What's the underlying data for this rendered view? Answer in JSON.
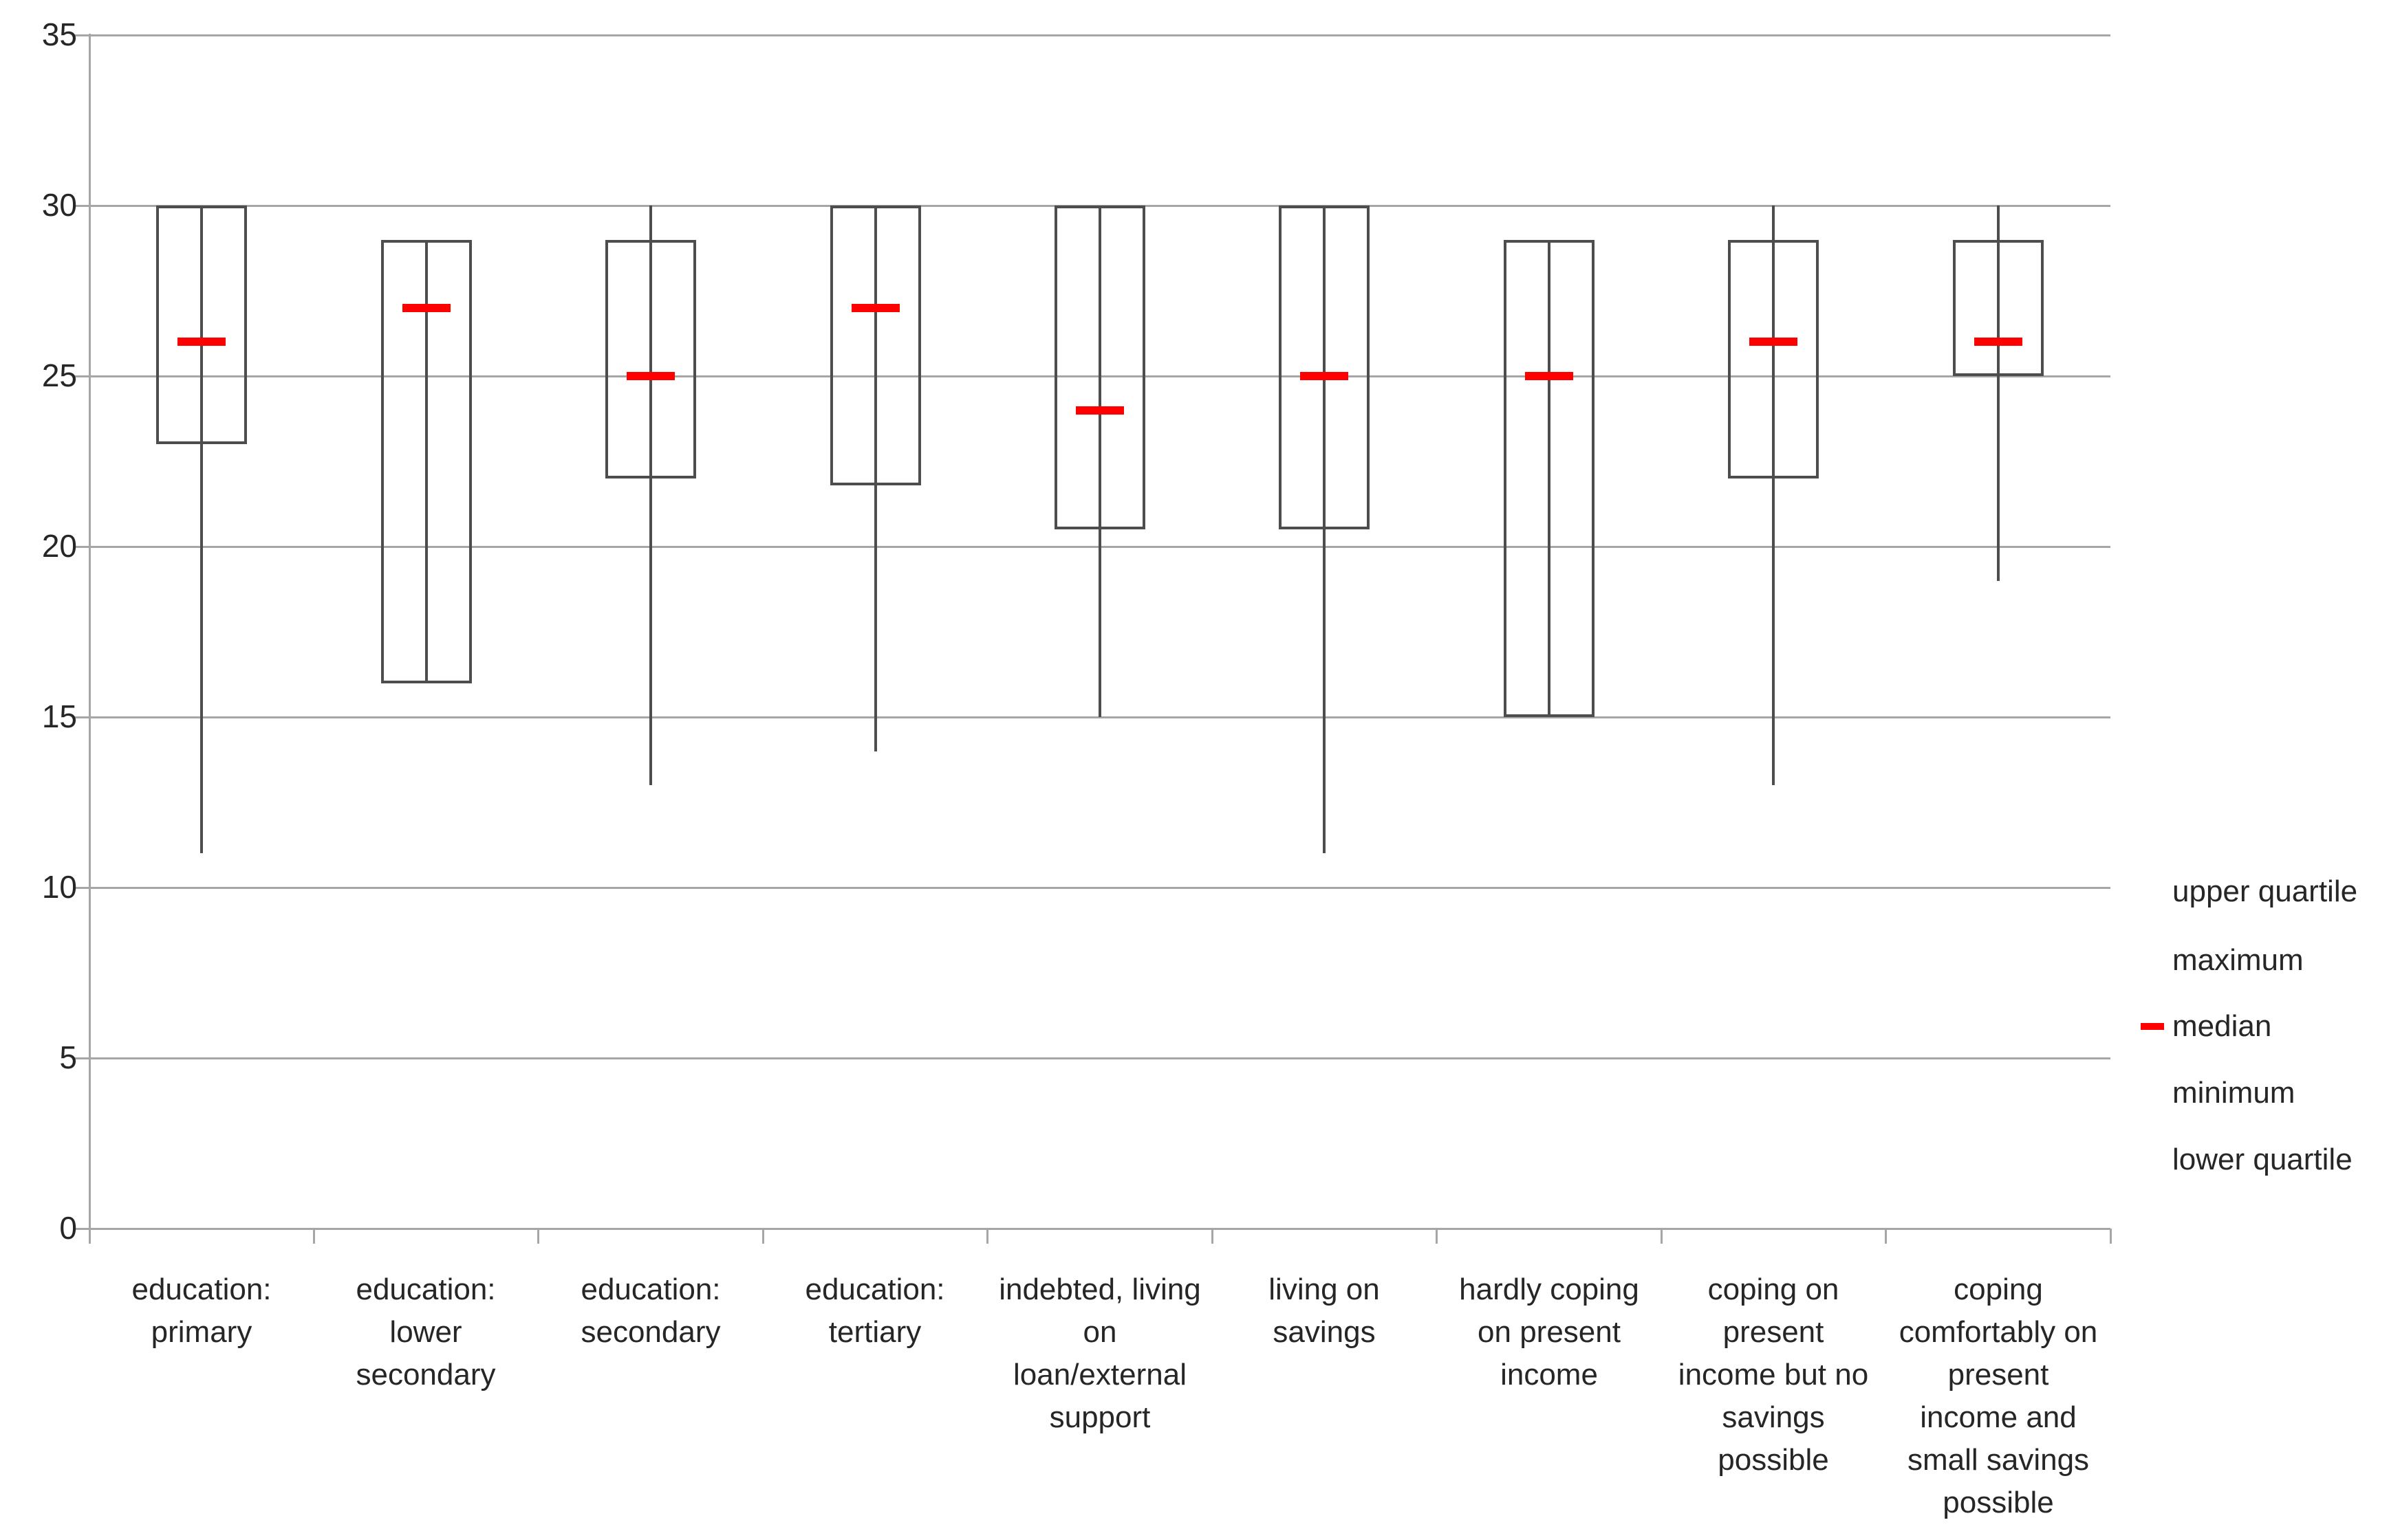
{
  "chart_data": {
    "type": "boxplot",
    "title": "",
    "xlabel": "",
    "ylabel": "",
    "grid": "horizontal",
    "y_axis": {
      "min": 0,
      "max": 35,
      "step": 5,
      "ticks": [
        0,
        5,
        10,
        15,
        20,
        25,
        30,
        35
      ]
    },
    "series": [
      {
        "category": "education: primary",
        "label_lines": [
          "education:",
          "primary"
        ],
        "min": 11,
        "lower_quartile": 23,
        "median": 26,
        "upper_quartile": 30,
        "max": 30
      },
      {
        "category": "education: lower secondary",
        "label_lines": [
          "education:",
          "lower",
          "secondary"
        ],
        "min": 16,
        "lower_quartile": 16,
        "median": 27,
        "upper_quartile": 29,
        "max": 29
      },
      {
        "category": "education: secondary",
        "label_lines": [
          "education:",
          "secondary"
        ],
        "min": 13,
        "lower_quartile": 22,
        "median": 25,
        "upper_quartile": 29,
        "max": 30
      },
      {
        "category": "education: tertiary",
        "label_lines": [
          "education:",
          "tertiary"
        ],
        "min": 14,
        "lower_quartile": 21.8,
        "median": 27,
        "upper_quartile": 30,
        "max": 30
      },
      {
        "category": "indebted, living on loan/external support",
        "label_lines": [
          "indebted, living",
          "on",
          "loan/external",
          "support"
        ],
        "min": 15,
        "lower_quartile": 20.5,
        "median": 24,
        "upper_quartile": 30,
        "max": 30
      },
      {
        "category": "living on savings",
        "label_lines": [
          "living on",
          "savings"
        ],
        "min": 11,
        "lower_quartile": 20.5,
        "median": 25,
        "upper_quartile": 30,
        "max": 30
      },
      {
        "category": "hardly coping on present income",
        "label_lines": [
          "hardly coping",
          "on present",
          "income"
        ],
        "min": 15,
        "lower_quartile": 15,
        "median": 25,
        "upper_quartile": 29,
        "max": 29
      },
      {
        "category": "coping on present income but no savings possible",
        "label_lines": [
          "coping on",
          "present",
          "income but no",
          "savings",
          "possible"
        ],
        "min": 13,
        "lower_quartile": 22,
        "median": 26,
        "upper_quartile": 29,
        "max": 30
      },
      {
        "category": "coping comfortably on present income and small savings possible",
        "label_lines": [
          "coping",
          "comfortably on",
          "present",
          "income and",
          "small savings",
          "possible"
        ],
        "min": 19,
        "lower_quartile": 25,
        "median": 26,
        "upper_quartile": 29,
        "max": 30
      }
    ],
    "legend": {
      "position": "right",
      "items": [
        {
          "label": "upper quartile",
          "marker": "none"
        },
        {
          "label": "maximum",
          "marker": "none"
        },
        {
          "label": "median",
          "marker": "red-dash"
        },
        {
          "label": "minimum",
          "marker": "none"
        },
        {
          "label": "lower quartile",
          "marker": "none"
        }
      ]
    },
    "colors": {
      "median": "#ff0000",
      "box_border": "#4d4d4d",
      "whisker": "#4d4d4d",
      "gridline": "#a6a6a6",
      "text": "#262626",
      "background": "#ffffff"
    }
  }
}
